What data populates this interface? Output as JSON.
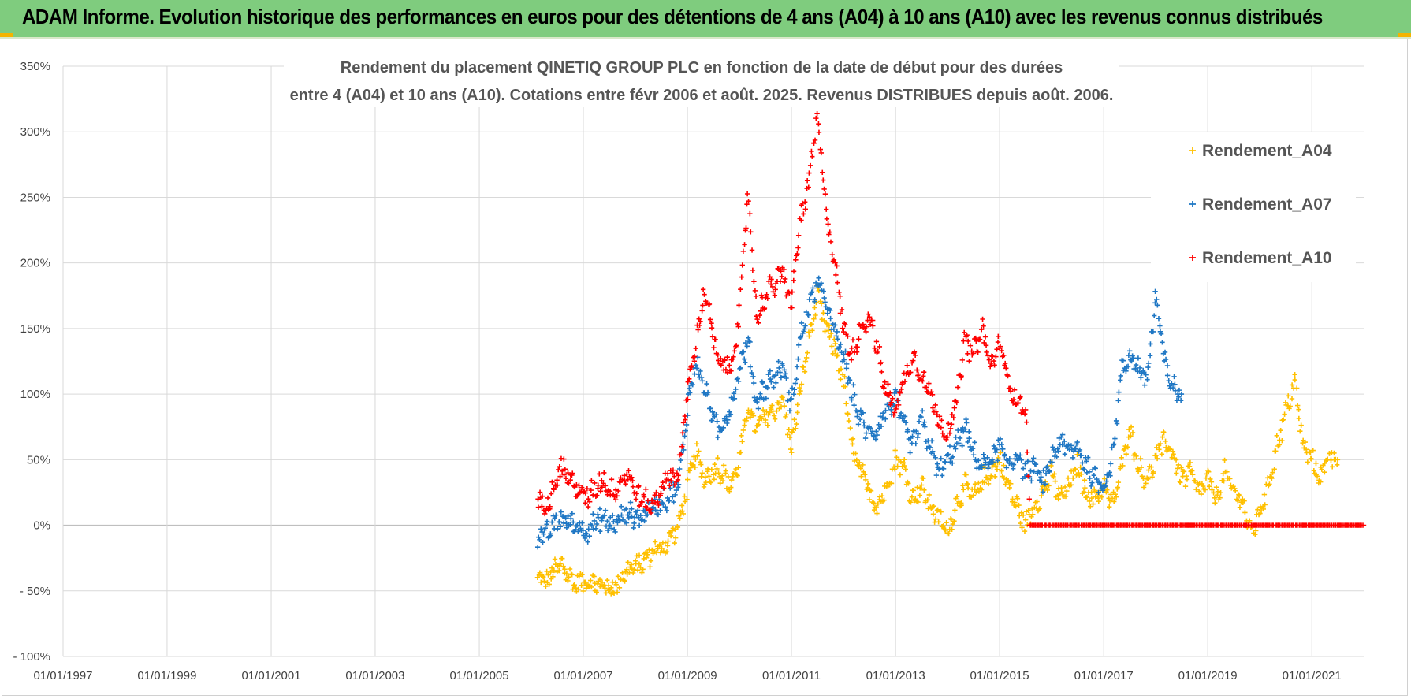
{
  "banner": {
    "title": "ADAM Informe. Evolution historique des performances en euros pour des détentions de 4 ans (A04) à 10 ans (A10) avec les revenus connus distribués"
  },
  "colors": {
    "banner_bg": "#7fcc7e",
    "A04": "#ffc000",
    "A07": "#1f77c4",
    "A10": "#ff0000",
    "grid": "#d9d9d9",
    "zero_line": "#bfbfbf"
  },
  "chart_data": {
    "type": "scatter",
    "marker": "plus",
    "title_line1": "Rendement du placement QINETIQ GROUP PLC en fonction de la date de début pour des durées",
    "title_line2": "entre 4 (A04) et 10 ans (A10).  Cotations entre févr 2006 et août. 2025.  Revenus DISTRIBUES depuis août. 2006.",
    "xlabel": "",
    "ylabel": "",
    "xlim": [
      "1997-01-01",
      "2021-12-31"
    ],
    "ylim": [
      -100,
      350
    ],
    "x_ticks": [
      "01/01/1997",
      "01/01/1999",
      "01/01/2001",
      "01/01/2003",
      "01/01/2005",
      "01/01/2007",
      "01/01/2009",
      "01/01/2011",
      "01/01/2013",
      "01/01/2015",
      "01/01/2017",
      "01/01/2019",
      "01/01/2021"
    ],
    "y_ticks": [
      "- 100%",
      "- 50%",
      "0%",
      "50%",
      "100%",
      "150%",
      "200%",
      "250%",
      "300%",
      "350%"
    ],
    "grid": true,
    "legend_position": "right",
    "series": [
      {
        "name": "Rendement_A04",
        "color": "#ffc000",
        "points": [
          [
            "2006-02-15",
            -42
          ],
          [
            "2006-05-01",
            -40
          ],
          [
            "2006-08-01",
            -30
          ],
          [
            "2006-11-01",
            -45
          ],
          [
            "2007-02-01",
            -42
          ],
          [
            "2007-05-01",
            -46
          ],
          [
            "2007-08-01",
            -48
          ],
          [
            "2007-11-01",
            -35
          ],
          [
            "2008-02-01",
            -30
          ],
          [
            "2008-05-01",
            -20
          ],
          [
            "2008-08-01",
            -15
          ],
          [
            "2008-11-01",
            0
          ],
          [
            "2009-01-01",
            30
          ],
          [
            "2009-03-01",
            55
          ],
          [
            "2009-05-01",
            35
          ],
          [
            "2009-08-01",
            45
          ],
          [
            "2009-11-01",
            30
          ],
          [
            "2010-01-01",
            50
          ],
          [
            "2010-03-01",
            90
          ],
          [
            "2010-05-01",
            75
          ],
          [
            "2010-08-01",
            85
          ],
          [
            "2010-11-01",
            95
          ],
          [
            "2011-01-01",
            60
          ],
          [
            "2011-03-01",
            100
          ],
          [
            "2011-05-01",
            140
          ],
          [
            "2011-07-01",
            175
          ],
          [
            "2011-09-01",
            150
          ],
          [
            "2011-11-01",
            135
          ],
          [
            "2012-01-01",
            110
          ],
          [
            "2012-03-01",
            60
          ],
          [
            "2012-05-01",
            40
          ],
          [
            "2012-07-01",
            25
          ],
          [
            "2012-09-01",
            15
          ],
          [
            "2012-11-01",
            30
          ],
          [
            "2013-01-01",
            50
          ],
          [
            "2013-03-01",
            45
          ],
          [
            "2013-05-01",
            20
          ],
          [
            "2013-07-01",
            30
          ],
          [
            "2013-09-01",
            15
          ],
          [
            "2013-11-01",
            5
          ],
          [
            "2014-01-01",
            -5
          ],
          [
            "2014-03-01",
            15
          ],
          [
            "2014-05-01",
            30
          ],
          [
            "2014-07-01",
            20
          ],
          [
            "2014-09-01",
            35
          ],
          [
            "2014-11-01",
            40
          ],
          [
            "2015-01-01",
            50
          ],
          [
            "2015-03-01",
            30
          ],
          [
            "2015-05-01",
            15
          ],
          [
            "2015-07-01",
            0
          ],
          [
            "2015-09-01",
            15
          ],
          [
            "2015-11-01",
            25
          ],
          [
            "2016-01-01",
            40
          ],
          [
            "2016-03-01",
            20
          ],
          [
            "2016-05-01",
            30
          ],
          [
            "2016-07-01",
            45
          ],
          [
            "2016-09-01",
            25
          ],
          [
            "2016-11-01",
            20
          ],
          [
            "2017-01-01",
            30
          ],
          [
            "2017-03-01",
            15
          ],
          [
            "2017-05-01",
            40
          ],
          [
            "2017-07-01",
            75
          ],
          [
            "2017-09-01",
            45
          ],
          [
            "2017-11-01",
            35
          ],
          [
            "2018-01-01",
            50
          ],
          [
            "2018-03-01",
            65
          ],
          [
            "2018-05-01",
            55
          ],
          [
            "2018-07-01",
            35
          ],
          [
            "2018-09-01",
            40
          ],
          [
            "2018-11-01",
            25
          ],
          [
            "2019-01-01",
            35
          ],
          [
            "2019-03-01",
            20
          ],
          [
            "2019-05-01",
            40
          ],
          [
            "2019-07-01",
            25
          ],
          [
            "2019-09-01",
            20
          ],
          [
            "2019-11-01",
            -8
          ],
          [
            "2020-01-01",
            10
          ],
          [
            "2020-03-01",
            30
          ],
          [
            "2020-05-01",
            60
          ],
          [
            "2020-07-01",
            85
          ],
          [
            "2020-09-01",
            110
          ],
          [
            "2020-11-01",
            60
          ],
          [
            "2021-01-01",
            50
          ],
          [
            "2021-03-01",
            35
          ],
          [
            "2021-05-01",
            55
          ],
          [
            "2021-07-01",
            50
          ]
        ]
      },
      {
        "name": "Rendement_A07",
        "color": "#1f77c4",
        "points": [
          [
            "2006-02-15",
            -10
          ],
          [
            "2006-05-01",
            -5
          ],
          [
            "2006-08-01",
            5
          ],
          [
            "2006-11-01",
            0
          ],
          [
            "2007-02-01",
            -3
          ],
          [
            "2007-05-01",
            5
          ],
          [
            "2007-08-01",
            0
          ],
          [
            "2007-11-01",
            10
          ],
          [
            "2008-02-01",
            5
          ],
          [
            "2008-05-01",
            15
          ],
          [
            "2008-08-01",
            20
          ],
          [
            "2008-11-01",
            30
          ],
          [
            "2009-01-01",
            90
          ],
          [
            "2009-03-01",
            125
          ],
          [
            "2009-05-01",
            105
          ],
          [
            "2009-08-01",
            70
          ],
          [
            "2009-11-01",
            90
          ],
          [
            "2010-01-01",
            120
          ],
          [
            "2010-03-01",
            140
          ],
          [
            "2010-05-01",
            95
          ],
          [
            "2010-08-01",
            110
          ],
          [
            "2010-11-01",
            120
          ],
          [
            "2011-01-01",
            90
          ],
          [
            "2011-03-01",
            140
          ],
          [
            "2011-05-01",
            165
          ],
          [
            "2011-07-01",
            185
          ],
          [
            "2011-09-01",
            170
          ],
          [
            "2011-11-01",
            145
          ],
          [
            "2012-01-01",
            130
          ],
          [
            "2012-03-01",
            100
          ],
          [
            "2012-05-01",
            80
          ],
          [
            "2012-07-01",
            70
          ],
          [
            "2012-09-01",
            75
          ],
          [
            "2012-11-01",
            90
          ],
          [
            "2013-01-01",
            95
          ],
          [
            "2013-03-01",
            75
          ],
          [
            "2013-05-01",
            60
          ],
          [
            "2013-07-01",
            80
          ],
          [
            "2013-09-01",
            60
          ],
          [
            "2013-11-01",
            40
          ],
          [
            "2014-01-01",
            50
          ],
          [
            "2014-03-01",
            60
          ],
          [
            "2014-05-01",
            75
          ],
          [
            "2014-07-01",
            55
          ],
          [
            "2014-09-01",
            45
          ],
          [
            "2014-11-01",
            50
          ],
          [
            "2015-01-01",
            60
          ],
          [
            "2015-03-01",
            45
          ],
          [
            "2015-05-01",
            55
          ],
          [
            "2015-07-01",
            40
          ],
          [
            "2015-09-01",
            45
          ],
          [
            "2015-11-01",
            30
          ],
          [
            "2016-01-01",
            50
          ],
          [
            "2016-03-01",
            65
          ],
          [
            "2016-05-01",
            55
          ],
          [
            "2016-07-01",
            60
          ],
          [
            "2016-09-01",
            45
          ],
          [
            "2016-11-01",
            35
          ],
          [
            "2017-01-01",
            30
          ],
          [
            "2017-03-01",
            50
          ],
          [
            "2017-05-01",
            115
          ],
          [
            "2017-07-01",
            130
          ],
          [
            "2017-09-01",
            120
          ],
          [
            "2017-11-01",
            110
          ],
          [
            "2018-01-01",
            175
          ],
          [
            "2018-03-01",
            125
          ],
          [
            "2018-05-01",
            105
          ],
          [
            "2018-07-01",
            100
          ]
        ]
      },
      {
        "name": "Rendement_A10",
        "color": "#ff0000",
        "points": [
          [
            "2006-02-15",
            15
          ],
          [
            "2006-05-01",
            20
          ],
          [
            "2006-08-01",
            45
          ],
          [
            "2006-11-01",
            30
          ],
          [
            "2007-02-01",
            20
          ],
          [
            "2007-05-01",
            35
          ],
          [
            "2007-08-01",
            25
          ],
          [
            "2007-11-01",
            40
          ],
          [
            "2008-02-01",
            20
          ],
          [
            "2008-05-01",
            15
          ],
          [
            "2008-08-01",
            35
          ],
          [
            "2008-11-01",
            40
          ],
          [
            "2009-01-01",
            100
          ],
          [
            "2009-03-01",
            140
          ],
          [
            "2009-05-01",
            180
          ],
          [
            "2009-08-01",
            125
          ],
          [
            "2009-11-01",
            120
          ],
          [
            "2010-01-01",
            160
          ],
          [
            "2010-03-01",
            255
          ],
          [
            "2010-05-01",
            160
          ],
          [
            "2010-08-01",
            180
          ],
          [
            "2010-11-01",
            190
          ],
          [
            "2011-01-01",
            170
          ],
          [
            "2011-03-01",
            230
          ],
          [
            "2011-05-01",
            260
          ],
          [
            "2011-07-01",
            310
          ],
          [
            "2011-09-01",
            240
          ],
          [
            "2011-11-01",
            200
          ],
          [
            "2012-01-01",
            150
          ],
          [
            "2012-03-01",
            130
          ],
          [
            "2012-05-01",
            150
          ],
          [
            "2012-07-01",
            160
          ],
          [
            "2012-09-01",
            130
          ],
          [
            "2012-11-01",
            100
          ],
          [
            "2013-01-01",
            90
          ],
          [
            "2013-03-01",
            110
          ],
          [
            "2013-05-01",
            130
          ],
          [
            "2013-07-01",
            115
          ],
          [
            "2013-09-01",
            100
          ],
          [
            "2013-11-01",
            80
          ],
          [
            "2014-01-01",
            70
          ],
          [
            "2014-03-01",
            90
          ],
          [
            "2014-05-01",
            140
          ],
          [
            "2014-07-01",
            130
          ],
          [
            "2014-09-01",
            150
          ],
          [
            "2014-11-01",
            120
          ],
          [
            "2015-01-01",
            140
          ],
          [
            "2015-03-01",
            110
          ],
          [
            "2015-05-01",
            95
          ],
          [
            "2015-07-01",
            90
          ],
          [
            "2015-08-01",
            0
          ],
          [
            "2016-01-01",
            0
          ],
          [
            "2016-06-01",
            0
          ],
          [
            "2017-01-01",
            0
          ],
          [
            "2017-06-01",
            0
          ],
          [
            "2018-01-01",
            0
          ],
          [
            "2018-06-01",
            0
          ],
          [
            "2019-01-01",
            0
          ],
          [
            "2019-06-01",
            0
          ],
          [
            "2020-01-01",
            0
          ],
          [
            "2020-06-01",
            0
          ],
          [
            "2021-01-01",
            0
          ],
          [
            "2021-06-01",
            0
          ],
          [
            "2021-12-31",
            0
          ]
        ]
      }
    ]
  }
}
